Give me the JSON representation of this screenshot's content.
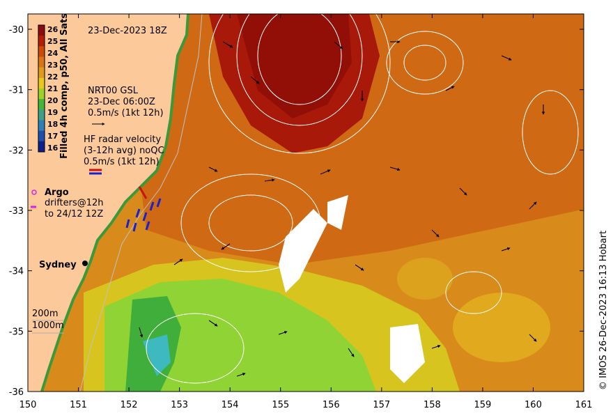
{
  "title_timestamp": "23-Dec-2023 18Z",
  "colorbar": {
    "label": "Filled 4h comp, p50, All Sats",
    "ticks": [
      "26",
      "25",
      "24",
      "23",
      "22",
      "21",
      "20",
      "19",
      "18",
      "17",
      "16"
    ],
    "colors": [
      "#8b0c0c",
      "#b41e06",
      "#cc4a0a",
      "#d97417",
      "#e09a20",
      "#e7c81e",
      "#9bd32a",
      "#42b83a",
      "#3fa08a",
      "#2e7fb7",
      "#1a4fb0",
      "#0d1f8e"
    ]
  },
  "legend": {
    "gsl_title": "NRT00 GSL",
    "gsl_time": "23-Dec 06:00Z",
    "gsl_scale": "0.5m/s (1kt 12h)",
    "hf_title": "HF radar velocity",
    "hf_avg": "(3-12h avg) noQC",
    "hf_scale": "0.5m/s (1kt 12h)",
    "argo": "Argo",
    "drifters_line1": "drifters@12h",
    "drifters_line2": "to 24/12 12Z"
  },
  "places": {
    "sydney": "Sydney"
  },
  "isobaths": {
    "shallow": "200m",
    "deep": "1000m"
  },
  "axes": {
    "x_ticks": [
      "150",
      "151",
      "152",
      "153",
      "154",
      "155",
      "156",
      "157",
      "158",
      "159",
      "160",
      "161"
    ],
    "y_ticks": [
      "-30",
      "-31",
      "-32",
      "-33",
      "-34",
      "-35",
      "-36"
    ]
  },
  "credit": "© IMOS 26-Dec-2023 16:13 Hobart",
  "colors": {
    "land": "#fcc99a",
    "warm_core": "#a8190a",
    "shelf_water": "#c8520e",
    "offshore": "#d98a1c",
    "cool_water": "#8fd434",
    "contour": "#ffffff"
  }
}
